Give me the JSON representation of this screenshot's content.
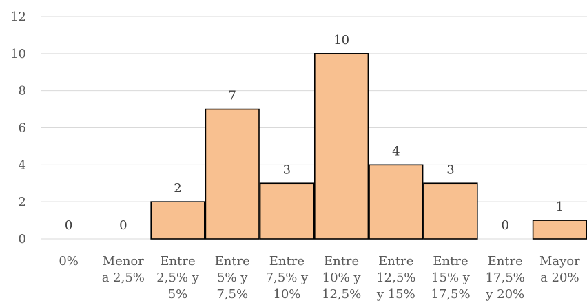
{
  "chart_data": {
    "type": "bar",
    "categories": [
      [
        "0%"
      ],
      [
        "Menor",
        "a 2,5%"
      ],
      [
        "Entre",
        "2,5% y",
        "5%"
      ],
      [
        "Entre",
        "5% y",
        "7,5%"
      ],
      [
        "Entre",
        "7,5% y",
        "10%"
      ],
      [
        "Entre",
        "10% y",
        "12,5%"
      ],
      [
        "Entre",
        "12,5%",
        "y 15%"
      ],
      [
        "Entre",
        "15% y",
        "17,5%"
      ],
      [
        "Entre",
        "17,5%",
        "y 20%"
      ],
      [
        "Mayor",
        "a 20%"
      ]
    ],
    "values": [
      0,
      0,
      2,
      7,
      3,
      10,
      4,
      3,
      0,
      1
    ],
    "data_labels": [
      "0",
      "0",
      "2",
      "7",
      "3",
      "10",
      "4",
      "3",
      "0",
      "1"
    ],
    "ylim": [
      0,
      12
    ],
    "yticks": [
      "0",
      "2",
      "4",
      "6",
      "8",
      "10",
      "12"
    ],
    "grid": true,
    "colors": {
      "bar_fill": "#f8c090",
      "bar_stroke": "#000000",
      "gridline": "#d9d9d9"
    }
  }
}
